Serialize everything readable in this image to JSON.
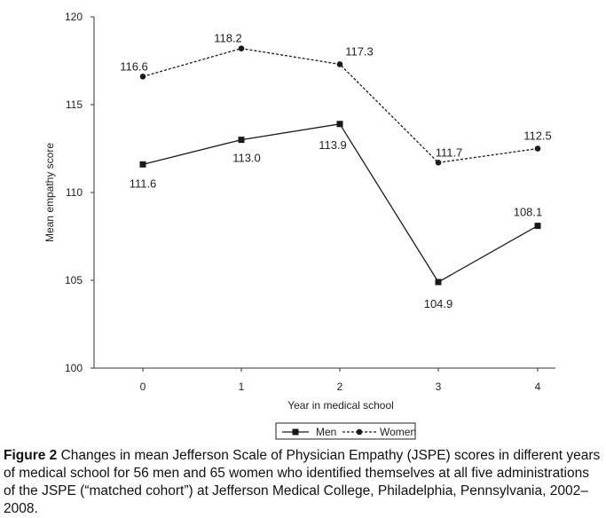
{
  "chart_data": {
    "type": "line",
    "x": [
      0,
      1,
      2,
      3,
      4
    ],
    "x_tick_labels": [
      "0",
      "1",
      "2",
      "3",
      "4"
    ],
    "xlabel": "Year in medical school",
    "ylabel": "Mean empathy score",
    "ylim": [
      100,
      120
    ],
    "y_ticks": [
      100,
      105,
      110,
      115,
      120
    ],
    "y_tick_labels": [
      "100",
      "105",
      "110",
      "115",
      "120"
    ],
    "grid": false,
    "legend_position": "bottom-center",
    "series": [
      {
        "name": "Men",
        "values": [
          111.6,
          113.0,
          113.9,
          104.9,
          108.1
        ],
        "labels": [
          "111.6",
          "113.0",
          "113.9",
          "104.9",
          "108.1"
        ],
        "line_style": "solid",
        "marker": "square",
        "legend_label": "Men"
      },
      {
        "name": "Women",
        "values": [
          116.6,
          118.2,
          117.3,
          111.7,
          112.5
        ],
        "labels": [
          "116.6",
          "118.2",
          "117.3",
          "111.7",
          "112.5"
        ],
        "line_style": "dashed",
        "marker": "circle",
        "legend_label": "Women"
      }
    ]
  },
  "caption": {
    "lead": "Figure 2",
    "text": " Changes in mean Jefferson Scale of Physician Empathy (JSPE) scores in different years of medical school for 56 men and 65 women who identified themselves at all five administrations of the JSPE (“matched cohort”) at Jefferson Medical College, Philadelphia, Pennsylvania, 2002–2008."
  },
  "colors": {
    "line": "#1a1a1a",
    "text": "#222222"
  }
}
